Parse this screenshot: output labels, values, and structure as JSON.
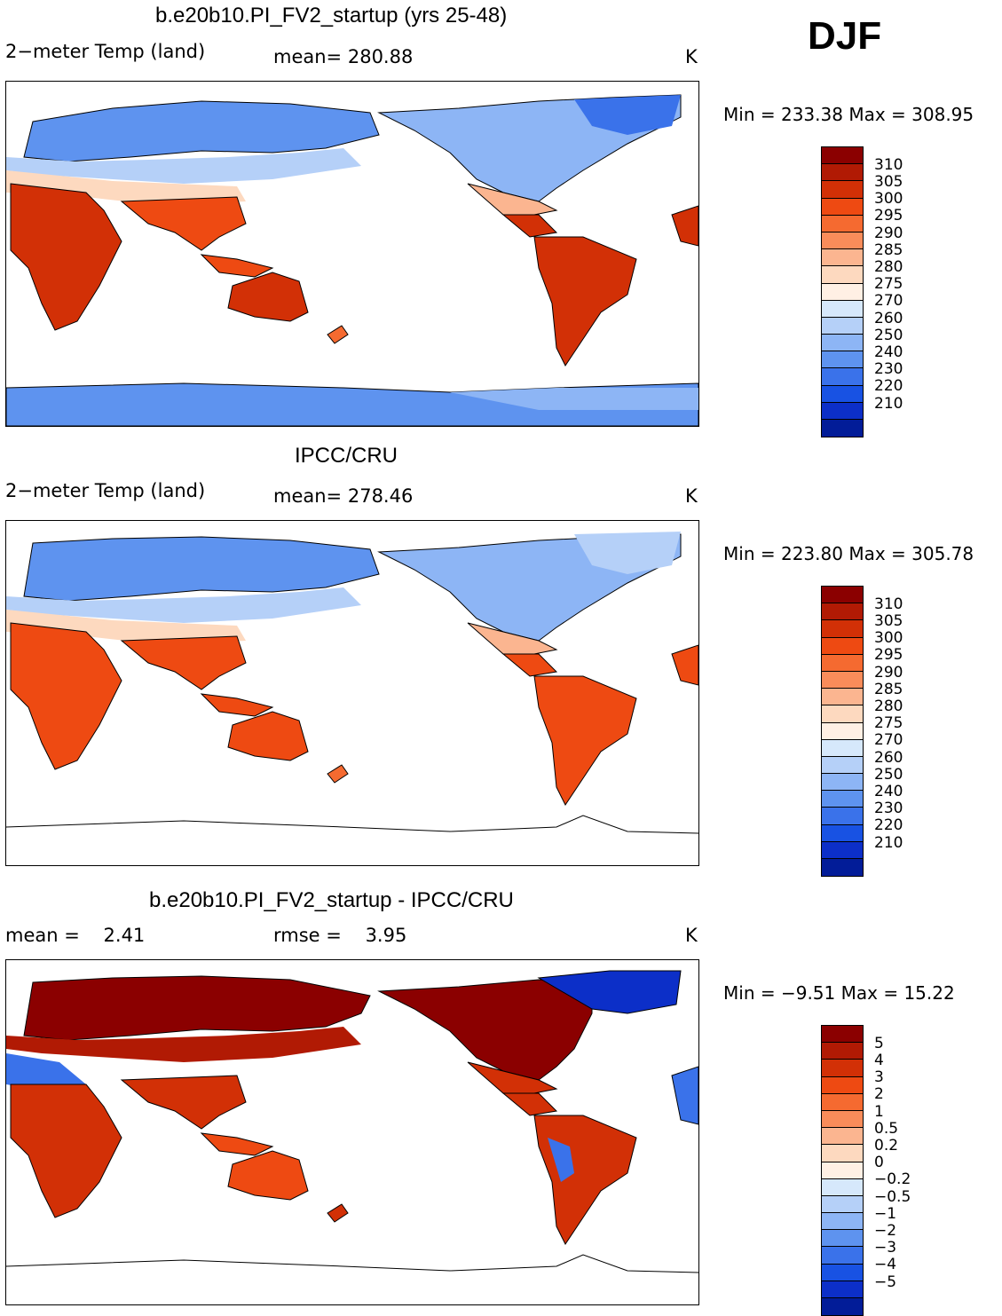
{
  "season": "DJF",
  "units": "K",
  "panels": [
    {
      "title": "b.e20b10.PI_FV2_startup (yrs 25-48)",
      "field_label": "2−meter Temp (land)",
      "stat_label": "mean=",
      "stat_value": "280.88",
      "units": "K",
      "min_label": "Min =",
      "min_value": "233.38",
      "max_label": "Max =",
      "max_value": "308.95",
      "levels": [
        "310",
        "305",
        "300",
        "295",
        "290",
        "285",
        "280",
        "275",
        "270",
        "260",
        "250",
        "240",
        "230",
        "220",
        "210"
      ],
      "colors": [
        "#8b0000",
        "#b11a04",
        "#d23006",
        "#ee4a12",
        "#f56a30",
        "#f98c5a",
        "#fbb590",
        "#fdd9bf",
        "#fff0e4",
        "#d6e8fb",
        "#b5d0f8",
        "#8db5f5",
        "#5e93ef",
        "#3a72ea",
        "#1852e3",
        "#0c2fc8",
        "#021c98"
      ]
    },
    {
      "title": "IPCC/CRU",
      "field_label": "2−meter Temp (land)",
      "stat_label": "mean=",
      "stat_value": "278.46",
      "units": "K",
      "min_label": "Min =",
      "min_value": "223.80",
      "max_label": "Max =",
      "max_value": "305.78",
      "levels": [
        "310",
        "305",
        "300",
        "295",
        "290",
        "285",
        "280",
        "275",
        "270",
        "260",
        "250",
        "240",
        "230",
        "220",
        "210"
      ],
      "colors": [
        "#8b0000",
        "#b11a04",
        "#d23006",
        "#ee4a12",
        "#f56a30",
        "#f98c5a",
        "#fbb590",
        "#fdd9bf",
        "#fff0e4",
        "#d6e8fb",
        "#b5d0f8",
        "#8db5f5",
        "#5e93ef",
        "#3a72ea",
        "#1852e3",
        "#0c2fc8",
        "#021c98"
      ]
    },
    {
      "title": "b.e20b10.PI_FV2_startup - IPCC/CRU",
      "field_label": "mean =",
      "field_value": "2.41",
      "stat_label": "rmse =",
      "stat_value": "3.95",
      "units": "K",
      "min_label": "Min =",
      "min_value": "−9.51",
      "max_label": "Max =",
      "max_value": "15.22",
      "levels": [
        "5",
        "4",
        "3",
        "2",
        "1",
        "0.5",
        "0.2",
        "0",
        "−0.2",
        "−0.5",
        "−1",
        "−2",
        "−3",
        "−4",
        "−5"
      ],
      "colors": [
        "#8b0000",
        "#b11a04",
        "#d23006",
        "#ee4a12",
        "#f56a30",
        "#f98c5a",
        "#fbb590",
        "#fdd9bf",
        "#fff0e4",
        "#d6e8fb",
        "#b5d0f8",
        "#8db5f5",
        "#5e93ef",
        "#3a72ea",
        "#1852e3",
        "#0c2fc8",
        "#021c98"
      ]
    }
  ]
}
